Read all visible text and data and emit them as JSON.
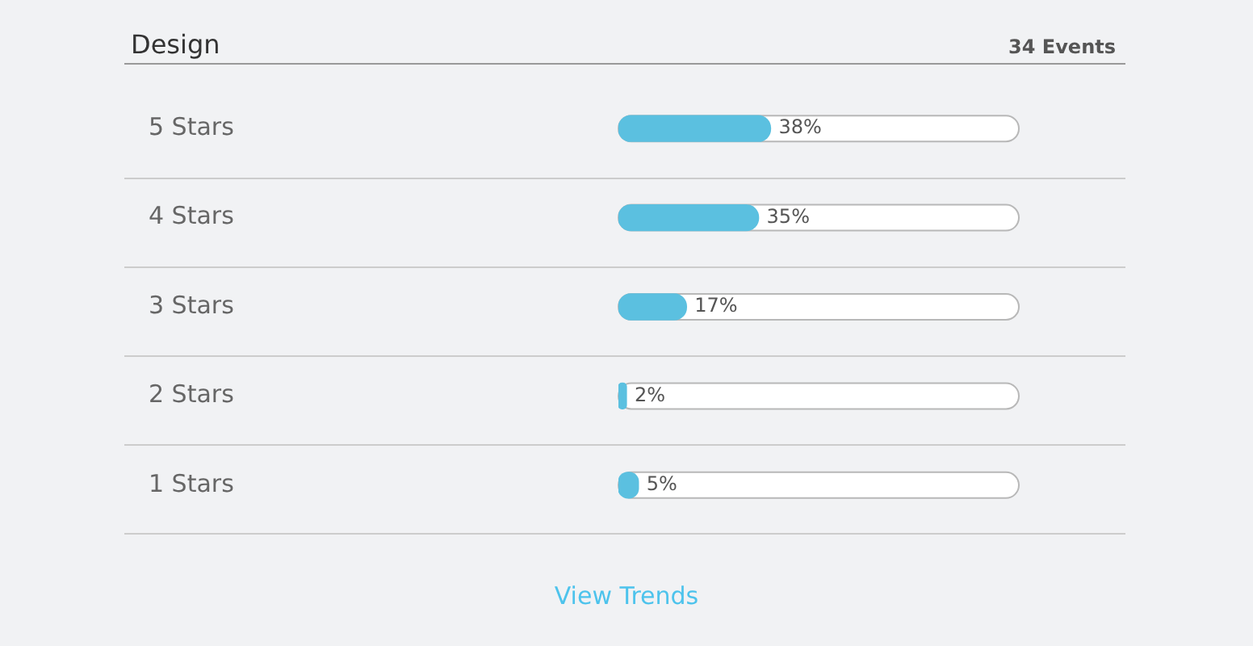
{
  "chart_data": {
    "type": "bar",
    "orientation": "horizontal",
    "title": "Design",
    "subtitle": "34 Events",
    "categories": [
      "5 Stars",
      "4 Stars",
      "3 Stars",
      "2 Stars",
      "1 Stars"
    ],
    "values": [
      38,
      35,
      17,
      2,
      5
    ],
    "value_labels": [
      "38%",
      "35%",
      "17%",
      "2%",
      "5%"
    ],
    "color": "#5bc0e0",
    "xlim": [
      0,
      100
    ],
    "tick_labels": "y",
    "legend": false,
    "annotations": [
      "View Trends"
    ]
  }
}
